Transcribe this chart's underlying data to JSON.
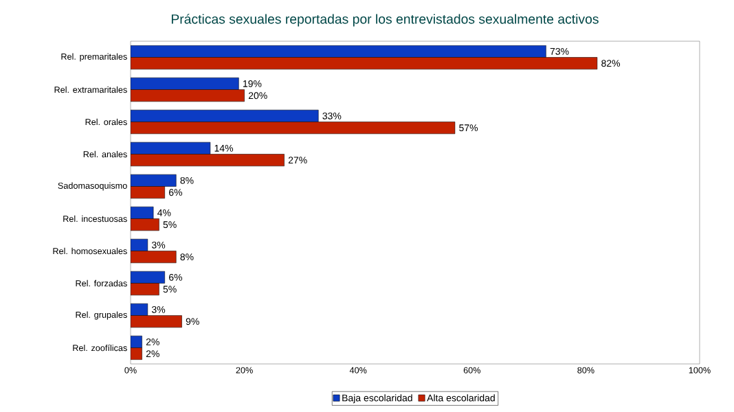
{
  "chart_data": {
    "type": "bar",
    "orientation": "horizontal",
    "title": "Prácticas sexuales reportadas por los entrevistados sexualmente activos",
    "categories": [
      "Rel. premaritales",
      "Rel. extramaritales",
      "Rel. orales",
      "Rel. anales",
      "Sadomasoquismo",
      "Rel. incestuosas",
      "Rel. homosexuales",
      "Rel. forzadas",
      "Rel. grupales",
      "Rel. zoofílicas"
    ],
    "series": [
      {
        "name": "Baja escolaridad",
        "color": "#0c3cc4",
        "values": [
          73,
          19,
          33,
          14,
          8,
          4,
          3,
          6,
          3,
          2
        ],
        "value_labels": [
          "73%",
          "19%",
          "33%",
          "14%",
          "8%",
          "4%",
          "3%",
          "6%",
          "3%",
          "2%"
        ]
      },
      {
        "name": "Alta escolaridad",
        "color": "#c42200",
        "values": [
          82,
          20,
          57,
          27,
          6,
          5,
          8,
          5,
          9,
          2
        ],
        "value_labels": [
          "82%",
          "20%",
          "57%",
          "27%",
          "6%",
          "5%",
          "8%",
          "5%",
          "9%",
          "2%"
        ]
      }
    ],
    "xlim": [
      0,
      100
    ],
    "xticks": [
      {
        "value": 0,
        "label": "0%"
      },
      {
        "value": 20,
        "label": "20%"
      },
      {
        "value": 40,
        "label": "40%"
      },
      {
        "value": 60,
        "label": "60%"
      },
      {
        "value": 80,
        "label": "80%"
      },
      {
        "value": 100,
        "label": "100%"
      }
    ],
    "grid": false,
    "legend": "bottom"
  }
}
